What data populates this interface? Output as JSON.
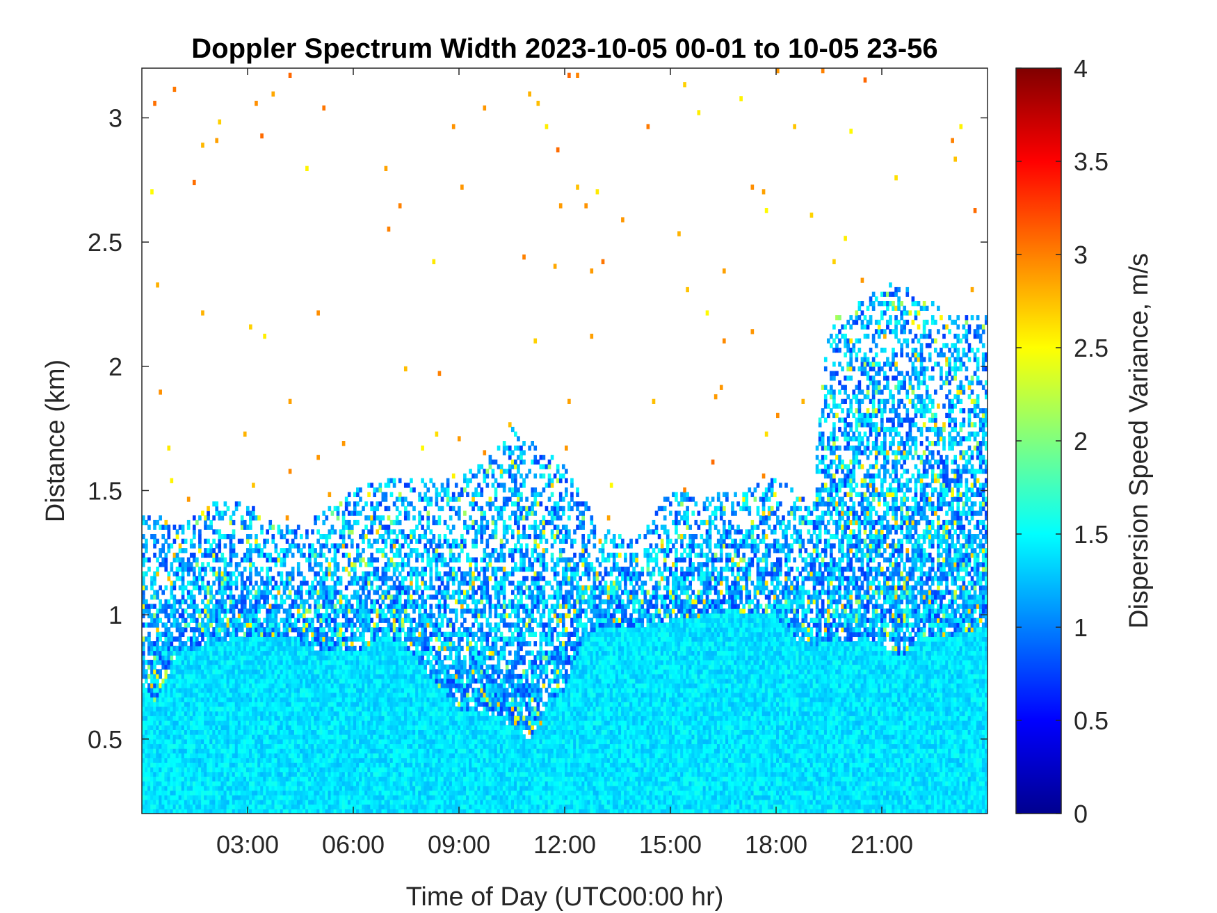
{
  "chart_data": {
    "type": "heatmap",
    "title": "Doppler Spectrum Width 2023-10-05 00-01 to 10-05 23-56",
    "xlabel": "Time of Day (UTC00:00 hr)",
    "ylabel": "Distance (km)",
    "colorbar_label": "Dispersion Speed Variance, m/s",
    "colormap": "jet",
    "x_range_hours": [
      0.0,
      24.0
    ],
    "xlim": [
      "00:01",
      "23:56"
    ],
    "ylim": [
      0.2,
      3.2
    ],
    "clim": [
      0,
      4
    ],
    "x_ticks": [
      {
        "value": 3,
        "label": "03:00"
      },
      {
        "value": 6,
        "label": "06:00"
      },
      {
        "value": 9,
        "label": "09:00"
      },
      {
        "value": 12,
        "label": "12:00"
      },
      {
        "value": 15,
        "label": "15:00"
      },
      {
        "value": 18,
        "label": "18:00"
      },
      {
        "value": 21,
        "label": "21:00"
      }
    ],
    "y_ticks": [
      {
        "value": 0.5,
        "label": "0.5"
      },
      {
        "value": 1.0,
        "label": "1"
      },
      {
        "value": 1.5,
        "label": "1.5"
      },
      {
        "value": 2.0,
        "label": "2"
      },
      {
        "value": 2.5,
        "label": "2.5"
      },
      {
        "value": 3.0,
        "label": "3"
      }
    ],
    "colorbar_ticks": [
      {
        "value": 0,
        "label": "0"
      },
      {
        "value": 0.5,
        "label": "0.5"
      },
      {
        "value": 1,
        "label": "1"
      },
      {
        "value": 1.5,
        "label": "1.5"
      },
      {
        "value": 2,
        "label": "2"
      },
      {
        "value": 2.5,
        "label": "2.5"
      },
      {
        "value": 3,
        "label": "3"
      },
      {
        "value": 3.5,
        "label": "3.5"
      },
      {
        "value": 4,
        "label": "4"
      }
    ],
    "data_top_profile": {
      "hours": [
        0.0,
        0.5,
        1.0,
        2.0,
        3.0,
        4.0,
        5.0,
        6.0,
        7.0,
        8.0,
        9.0,
        10.0,
        10.5,
        11.0,
        12.0,
        13.0,
        14.0,
        15.0,
        16.0,
        17.0,
        18.0,
        19.0,
        19.5,
        20.0,
        21.0,
        22.0,
        23.0,
        24.0
      ],
      "top_km": [
        1.4,
        1.4,
        1.35,
        1.45,
        1.45,
        1.35,
        1.4,
        1.5,
        1.55,
        1.55,
        1.55,
        1.65,
        1.75,
        1.7,
        1.6,
        1.35,
        1.3,
        1.5,
        1.5,
        1.5,
        1.55,
        1.45,
        2.2,
        2.2,
        2.35,
        2.3,
        2.2,
        2.2
      ]
    },
    "boundary_layer_profile": {
      "hours": [
        0.0,
        0.4,
        1.0,
        2.0,
        3.0,
        4.0,
        5.0,
        6.0,
        7.0,
        7.8,
        8.5,
        9.0,
        10.0,
        10.5,
        11.0,
        11.5,
        12.0,
        12.5,
        13.0,
        14.0,
        15.0,
        16.0,
        17.0,
        18.0,
        18.5,
        19.0,
        20.0,
        21.0,
        21.5,
        22.0,
        23.0,
        24.0
      ],
      "top_km": [
        0.7,
        0.65,
        0.85,
        0.88,
        0.92,
        0.92,
        0.85,
        0.85,
        0.92,
        0.82,
        0.7,
        0.62,
        0.6,
        0.55,
        0.5,
        0.6,
        0.7,
        0.9,
        0.95,
        0.95,
        0.98,
        1.0,
        1.0,
        1.0,
        0.9,
        0.88,
        0.9,
        0.88,
        0.82,
        0.9,
        0.92,
        0.95
      ]
    },
    "typical_values_ms": {
      "boundary_layer": 1.4,
      "upper_layer": 1.2,
      "sparse_points": 2.8
    }
  }
}
